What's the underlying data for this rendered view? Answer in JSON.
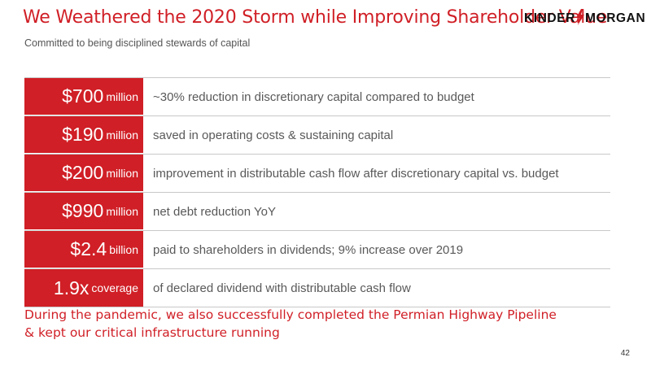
{
  "header": {
    "title": "We Weathered the 2020 Storm while Improving Shareholder Value",
    "subtitle": "Committed to being disciplined stewards of capital"
  },
  "logo": {
    "left": "KINDER",
    "right": "MORGAN",
    "icon": "lightning-bolt-icon"
  },
  "stats": [
    {
      "amount": "$700",
      "unit": "million",
      "text": "~30% reduction in discretionary capital compared to budget"
    },
    {
      "amount": "$190",
      "unit": "million",
      "text": "saved in operating costs & sustaining capital"
    },
    {
      "amount": "$200",
      "unit": "million",
      "text": "improvement in distributable cash flow after discretionary capital vs. budget"
    },
    {
      "amount": "$990",
      "unit": "million",
      "text": "net debt reduction YoY"
    },
    {
      "amount": "$2.4",
      "unit": "billion",
      "text": "paid to shareholders in dividends; 9% increase over 2019"
    },
    {
      "amount": "1.9x",
      "unit": "coverage",
      "text": "of declared dividend with distributable cash flow"
    }
  ],
  "note": {
    "line1": "During the pandemic, we also successfully completed the Permian Highway Pipeline",
    "line2": "& kept our critical infrastructure running"
  },
  "page_number": "42",
  "colors": {
    "accent": "#d01f26",
    "text": "#595959"
  }
}
